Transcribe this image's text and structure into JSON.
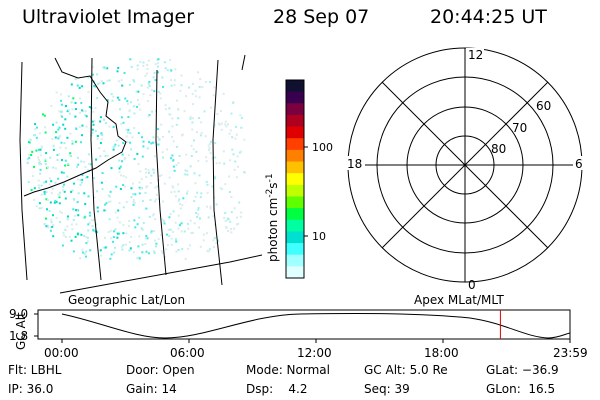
{
  "header": {
    "instrument": "Ultraviolet Imager",
    "date": "28 Sep 07",
    "time": "20:44:25 UT"
  },
  "colorbar": {
    "unit": "photon cm",
    "unit_sup1": "-2",
    "unit_mid": "s",
    "unit_sup2": "-1",
    "ticks": [
      "100",
      "10"
    ],
    "colors": [
      "#101030",
      "#3a0050",
      "#7a0040",
      "#b00020",
      "#e00000",
      "#ff4000",
      "#ff8000",
      "#ffc000",
      "#ffff00",
      "#c0ff00",
      "#60ff00",
      "#00ff40",
      "#00ffa0",
      "#00e0d0",
      "#40ffff",
      "#a0ffff",
      "#e0ffff"
    ]
  },
  "polar": {
    "mlt_labels": {
      "top": "12",
      "bottom": "0",
      "left": "18",
      "right": "6"
    },
    "lat_labels": [
      "60",
      "70",
      "80"
    ]
  },
  "panel_labels": {
    "left": "Geographic Lat/Lon",
    "right": "Apex MLat/MLT"
  },
  "orbit": {
    "axis_label": "GC Alt",
    "y_ticks": [
      "9.0",
      "1.8"
    ],
    "x_ticks": [
      "00:00",
      "06:00",
      "12:00",
      "18:00",
      "23:59"
    ],
    "current_time_fraction": 0.863,
    "marker_color": "#dd0000"
  },
  "status": {
    "row1": {
      "flt": "Flt: LBHL",
      "door": "Door: Open",
      "mode": "Mode: Normal",
      "gcalt": "GC Alt: 5.0 Re",
      "glat": "GLat: −36.9"
    },
    "row2": {
      "ip": "IP: 36.0",
      "gain": "Gain: 14",
      "dsp": "Dsp:    4.2",
      "seq": "Seq: 39",
      "glon": "GLon:  16.5"
    }
  }
}
